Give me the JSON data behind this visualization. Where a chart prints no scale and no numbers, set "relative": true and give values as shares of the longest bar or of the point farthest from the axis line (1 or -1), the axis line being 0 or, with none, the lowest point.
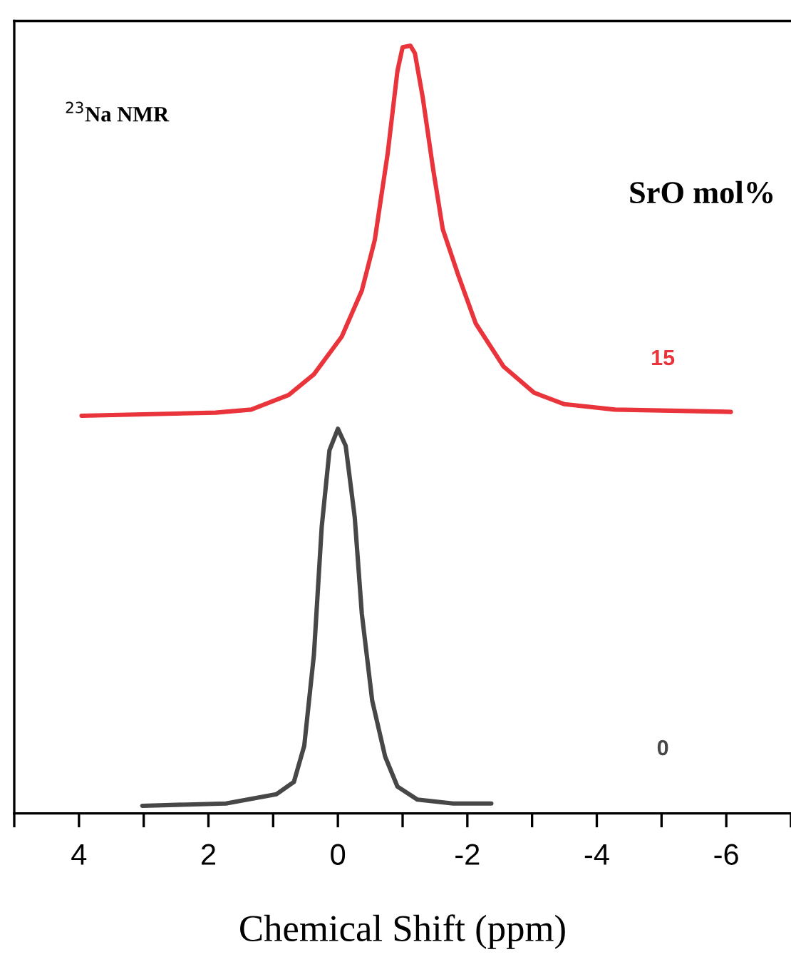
{
  "chart_data": {
    "type": "line",
    "relative": true,
    "xlabel": "Chemical Shift (ppm)",
    "annotations": [
      "$^{23}$Na NMR",
      "SrO mol%"
    ],
    "xlim": [
      5,
      -7
    ],
    "xticks": [
      {
        "value": 5,
        "label": null
      },
      4,
      {
        "value": 3,
        "label": null
      },
      2,
      {
        "value": 1,
        "label": null
      },
      0,
      {
        "value": -1,
        "label": null
      },
      -2,
      {
        "value": -3,
        "label": null
      },
      -4,
      {
        "value": -5,
        "label": null
      },
      -6,
      {
        "value": -7,
        "label": null
      }
    ],
    "grid": false,
    "legend": false,
    "marker": "none",
    "line_style": "solid",
    "series": [
      {
        "name": "15",
        "color": "#e8343a",
        "x": [
          3.96,
          1.89,
          1.34,
          0.76,
          0.37,
          -0.06,
          -0.37,
          -0.57,
          -0.77,
          -0.92,
          -1.0,
          -1.12,
          -1.19,
          -1.31,
          -1.47,
          -1.62,
          -1.86,
          -2.13,
          -2.56,
          -3.03,
          -3.5,
          -4.28,
          -6.07
        ],
        "values": [
          0.518,
          0.522,
          0.526,
          0.545,
          0.572,
          0.621,
          0.681,
          0.747,
          0.86,
          0.967,
          0.998,
          1.0,
          0.99,
          0.933,
          0.84,
          0.761,
          0.701,
          0.638,
          0.582,
          0.548,
          0.533,
          0.526,
          0.523
        ]
      },
      {
        "name": "0",
        "color": "#474747",
        "x": [
          3.02,
          1.73,
          0.95,
          0.68,
          0.52,
          0.37,
          0.25,
          0.13,
          0.0,
          -0.12,
          -0.26,
          -0.37,
          -0.53,
          -0.73,
          -0.92,
          -1.23,
          -1.78,
          -2.37
        ],
        "values": [
          0.01,
          0.013,
          0.025,
          0.041,
          0.088,
          0.207,
          0.373,
          0.473,
          0.501,
          0.479,
          0.386,
          0.26,
          0.147,
          0.074,
          0.035,
          0.018,
          0.013,
          0.013
        ]
      }
    ]
  }
}
